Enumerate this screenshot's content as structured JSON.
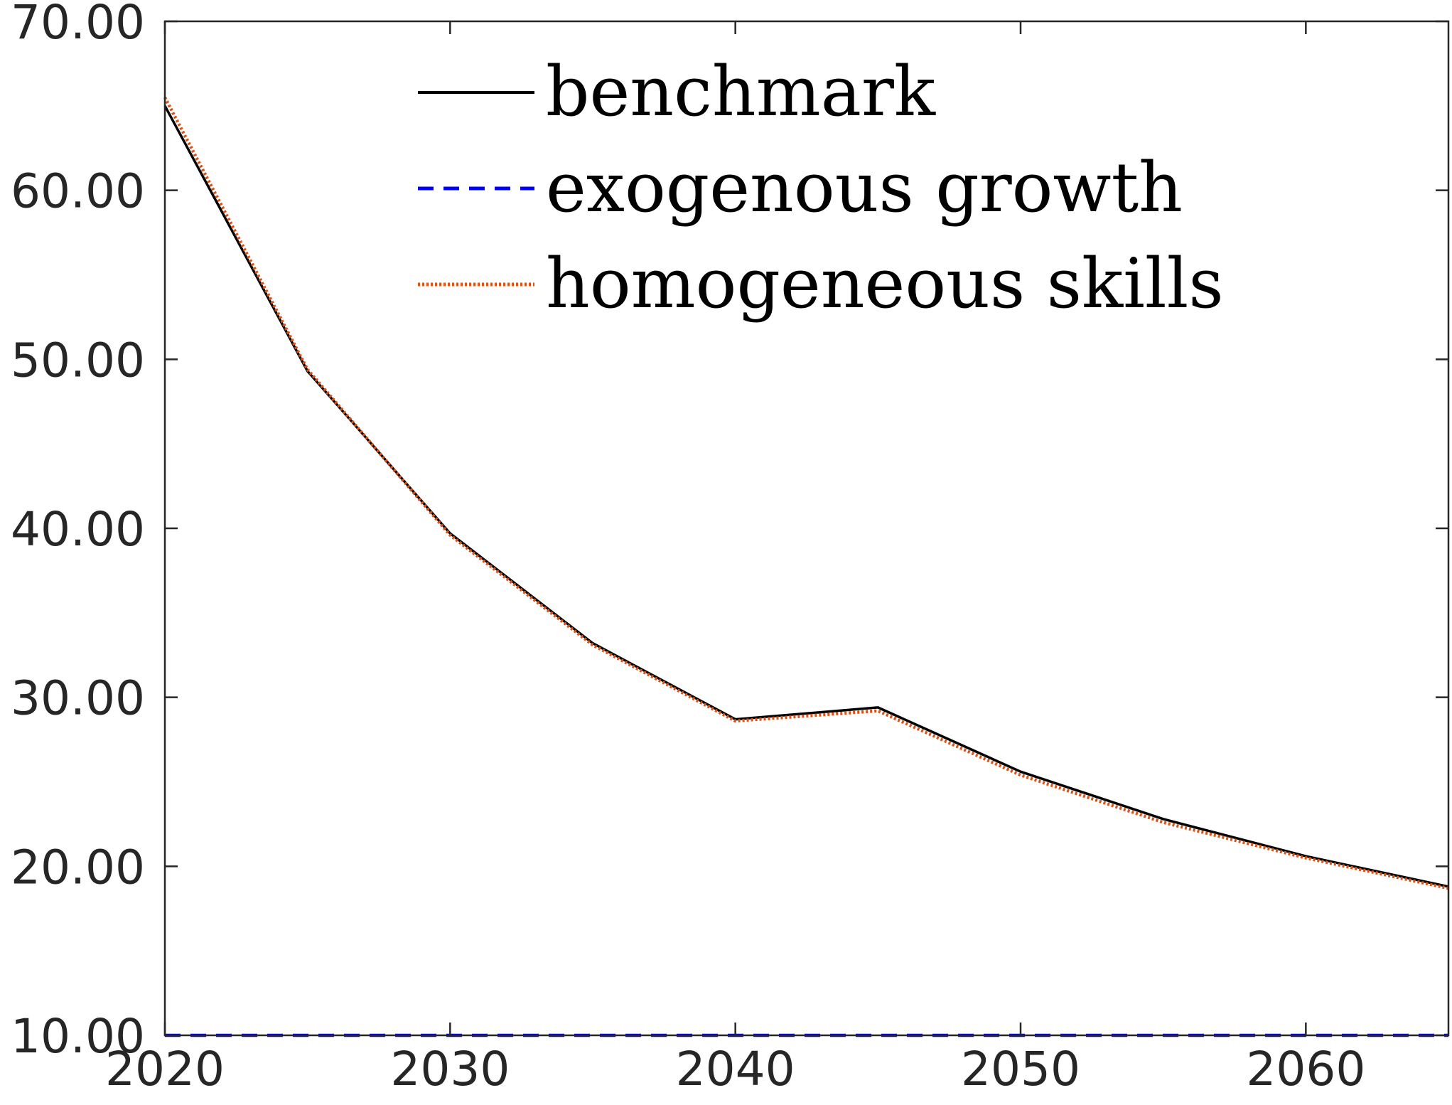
{
  "chart_data": {
    "type": "line",
    "title": "",
    "xlabel": "",
    "ylabel": "",
    "xlim": [
      2020,
      2065
    ],
    "ylim": [
      10,
      70
    ],
    "x_ticks": [
      2020,
      2030,
      2040,
      2050,
      2060
    ],
    "x_tick_labels": [
      "2020",
      "2030",
      "2040",
      "2050",
      "2060"
    ],
    "y_ticks": [
      10,
      20,
      30,
      40,
      50,
      60,
      70
    ],
    "y_tick_labels": [
      "10.00",
      "20.00",
      "30.00",
      "40.00",
      "50.00",
      "60.00",
      "70.00"
    ],
    "grid": false,
    "legend_position": "top-center",
    "x": [
      2020,
      2025,
      2030,
      2035,
      2040,
      2045,
      2050,
      2055,
      2060,
      2065
    ],
    "series": [
      {
        "name": "benchmark",
        "color": "#000000",
        "style": "solid",
        "values": [
          65.0,
          49.3,
          39.7,
          33.2,
          28.7,
          29.4,
          25.6,
          22.8,
          20.6,
          18.8
        ]
      },
      {
        "name": "exogenous growth",
        "color": "#0000ff",
        "style": "dashed",
        "values": [
          10.0,
          10.0,
          10.0,
          10.0,
          10.0,
          10.0,
          10.0,
          10.0,
          10.0,
          10.0
        ]
      },
      {
        "name": "homogeneous skills",
        "color": "#d95319",
        "style": "dotted",
        "values": [
          65.5,
          49.4,
          39.6,
          33.1,
          28.6,
          29.2,
          25.4,
          22.6,
          20.5,
          18.7
        ]
      }
    ]
  }
}
